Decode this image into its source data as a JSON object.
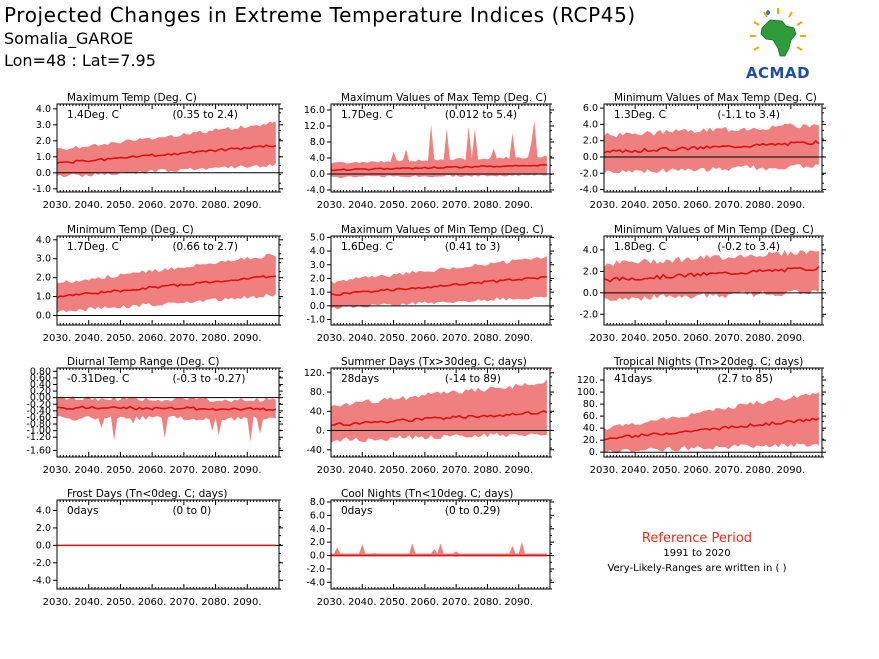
{
  "header": {
    "title": "Projected Changes in Extreme Temperature Indices (RCP45)",
    "station": "Somalia_GAROE",
    "coords": "Lon=48 : Lat=7.95"
  },
  "logo": {
    "text": "ACMAD"
  },
  "reference": {
    "title": "Reference Period",
    "years": "1991 to 2020",
    "note": "Very-Likely-Ranges are written in ( )"
  },
  "colors": {
    "band": "#f08080",
    "line": "#e01010",
    "zero": "#000000"
  },
  "chart_data": [
    {
      "type": "area",
      "title": "Maximum Temp (Deg. C)",
      "change": "1.4Deg. C",
      "range": "(0.35 to 2.4)",
      "yticks": [
        "-1.0",
        "0.0",
        "1.0",
        "2.0",
        "3.0",
        "4.0"
      ],
      "ylim": [
        -1.2,
        4.3
      ],
      "median_start": 0.6,
      "median_end": 1.7,
      "lower_start": -0.1,
      "lower_end": 0.6,
      "upper_start": 1.3,
      "upper_end": 3.0,
      "noise": 0.25,
      "spike": 0,
      "xticks": [
        "2030.",
        "2040.",
        "2050.",
        "2060.",
        "2070.",
        "2080.",
        "2090."
      ],
      "xlim": [
        2030,
        2100
      ],
      "x_start": 2030,
      "x_end": 2099,
      "seed": 1
    },
    {
      "type": "area",
      "title": "Maximum Values of Max Temp (Deg. C)",
      "change": "1.7Deg. C",
      "range": "(0.012 to 5.4)",
      "yticks": [
        "-4.0",
        "0.0",
        "4.0",
        "8.0",
        "12.0",
        "16.0"
      ],
      "ylim": [
        -4.5,
        17.5
      ],
      "median_start": 1.0,
      "median_end": 2.2,
      "lower_start": -0.5,
      "lower_end": 0.0,
      "upper_start": 2.5,
      "upper_end": 4.0,
      "noise": 0.6,
      "spike": 9,
      "xticks": [
        "2030.",
        "2040.",
        "2050.",
        "2060.",
        "2070.",
        "2080.",
        "2090."
      ],
      "xlim": [
        2030,
        2100
      ],
      "x_start": 2030,
      "x_end": 2099,
      "seed": 2
    },
    {
      "type": "area",
      "title": "Minimum Values of Max Temp (Deg. C)",
      "change": "1.3Deg. C",
      "range": "(-1.1 to 3.4)",
      "yticks": [
        "-4.0",
        "-2.0",
        "0.0",
        "2.0",
        "4.0",
        "6.0"
      ],
      "ylim": [
        -4.3,
        6.5
      ],
      "median_start": 0.6,
      "median_end": 1.8,
      "lower_start": -1.5,
      "lower_end": -0.8,
      "upper_start": 2.3,
      "upper_end": 3.6,
      "noise": 0.7,
      "spike": 0,
      "xticks": [
        "2030.",
        "2040.",
        "2050.",
        "2060.",
        "2070.",
        "2080.",
        "2090."
      ],
      "xlim": [
        2030,
        2100
      ],
      "x_start": 2030,
      "x_end": 2099,
      "seed": 3
    },
    {
      "type": "area",
      "title": "Minimum Temp (Deg. C)",
      "change": "1.7Deg. C",
      "range": "(0.66 to 2.7)",
      "yticks": [
        "0.0",
        "1.0",
        "2.0",
        "3.0",
        "4.0"
      ],
      "ylim": [
        -0.5,
        4.2
      ],
      "median_start": 1.0,
      "median_end": 2.1,
      "lower_start": 0.3,
      "lower_end": 1.2,
      "upper_start": 1.6,
      "upper_end": 3.1,
      "noise": 0.22,
      "spike": 0,
      "xticks": [
        "2030.",
        "2040.",
        "2050.",
        "2060.",
        "2070.",
        "2080.",
        "2090."
      ],
      "xlim": [
        2030,
        2100
      ],
      "x_start": 2030,
      "x_end": 2099,
      "seed": 4
    },
    {
      "type": "area",
      "title": "Maximum Values of Min Temp (Deg. C)",
      "change": "1.6Deg. C",
      "range": "(0.41 to 3)",
      "yticks": [
        "-1.0",
        "0.0",
        "1.0",
        "2.0",
        "3.0",
        "4.0",
        "5.0"
      ],
      "ylim": [
        -1.4,
        5.1
      ],
      "median_start": 0.8,
      "median_end": 2.1,
      "lower_start": 0.0,
      "lower_end": 0.8,
      "upper_start": 1.6,
      "upper_end": 3.4,
      "noise": 0.3,
      "spike": 0,
      "xticks": [
        "2030.",
        "2040.",
        "2050.",
        "2060.",
        "2070.",
        "2080.",
        "2090."
      ],
      "xlim": [
        2030,
        2100
      ],
      "x_start": 2030,
      "x_end": 2099,
      "seed": 5
    },
    {
      "type": "area",
      "title": "Minimum Values of Min Temp (Deg. C)",
      "change": "1.8Deg. C",
      "range": "(-0.2 to 3.4)",
      "yticks": [
        "-2.0",
        "0.0",
        "2.0",
        "4.0"
      ],
      "ylim": [
        -3.0,
        5.3
      ],
      "median_start": 1.2,
      "median_end": 2.3,
      "lower_start": -0.3,
      "lower_end": 0.4,
      "upper_start": 2.4,
      "upper_end": 3.6,
      "noise": 0.6,
      "spike": 0,
      "xticks": [
        "2030.",
        "2040.",
        "2050.",
        "2060.",
        "2070.",
        "2080.",
        "2090."
      ],
      "xlim": [
        2030,
        2100
      ],
      "x_start": 2030,
      "x_end": 2099,
      "seed": 6
    },
    {
      "type": "area",
      "title": "Diurnal Temp Range (Deg. C)",
      "change": "-0.31Deg. C",
      "range": "(-0.3 to -0.27)",
      "yticks": [
        "-1.60",
        "-1.20",
        "-1.00",
        "-0.80",
        "-0.60",
        "-0.40",
        "-0.20",
        "0.00",
        "0.20",
        "0.40",
        "0.60",
        "0.80"
      ],
      "ytick_values": [
        -1.6,
        -1.2,
        -1.0,
        -0.8,
        -0.6,
        -0.4,
        -0.2,
        0.0,
        0.2,
        0.4,
        0.6,
        0.8
      ],
      "ylim": [
        -1.8,
        0.9
      ],
      "median_start": -0.3,
      "median_end": -0.35,
      "lower_start": -0.55,
      "lower_end": -0.55,
      "upper_start": -0.1,
      "upper_end": -0.15,
      "noise": 0.15,
      "spike": -0.8,
      "xticks": [
        "2030.",
        "2040.",
        "2050.",
        "2060.",
        "2070.",
        "2080.",
        "2090."
      ],
      "xlim": [
        2030,
        2100
      ],
      "x_start": 2030,
      "x_end": 2099,
      "seed": 7
    },
    {
      "type": "area",
      "title": "Summer Days (Tx>30deg. C; days)",
      "change": "28days",
      "range": "(-14 to 89)",
      "yticks": [
        "-40.",
        "0.",
        "40.",
        "80.",
        "120."
      ],
      "ylim": [
        -55,
        130
      ],
      "median_start": 12,
      "median_end": 38,
      "lower_start": -15,
      "lower_end": 0,
      "upper_start": 45,
      "upper_end": 95,
      "noise": 12,
      "spike": 0,
      "xticks": [
        "2030.",
        "2040.",
        "2050.",
        "2060.",
        "2070.",
        "2080.",
        "2090."
      ],
      "xlim": [
        2030,
        2100
      ],
      "x_start": 2030,
      "x_end": 2099,
      "seed": 8
    },
    {
      "type": "area",
      "title": "Tropical Nights (Tn>20deg. C; days)",
      "change": "41days",
      "range": "(2.7 to 85)",
      "yticks": [
        "0.",
        "20.",
        "40.",
        "60.",
        "80.",
        "100.",
        "120."
      ],
      "ylim": [
        -8,
        140
      ],
      "median_start": 22,
      "median_end": 55,
      "lower_start": 5,
      "lower_end": 18,
      "upper_start": 35,
      "upper_end": 95,
      "noise": 8,
      "spike": 0,
      "xticks": [
        "2030.",
        "2040.",
        "2050.",
        "2060.",
        "2070.",
        "2080.",
        "2090."
      ],
      "xlim": [
        2030,
        2100
      ],
      "x_start": 2030,
      "x_end": 2099,
      "seed": 9
    },
    {
      "type": "area",
      "title": "Frost Days (Tn<0deg. C; days)",
      "change": "0days",
      "range": "(0 to 0)",
      "yticks": [
        "-4.0",
        "-2.0",
        "0.0",
        "2.0",
        "4.0"
      ],
      "ylim": [
        -5.0,
        5.2
      ],
      "median_start": 0,
      "median_end": 0,
      "lower_start": 0,
      "lower_end": 0,
      "upper_start": 0,
      "upper_end": 0,
      "noise": 0,
      "spike": 0,
      "xticks": [
        "2030.",
        "2040.",
        "2050.",
        "2060.",
        "2070.",
        "2080.",
        "2090."
      ],
      "xlim": [
        2030,
        2100
      ],
      "x_start": 2030,
      "x_end": 2099,
      "seed": 10
    },
    {
      "type": "area",
      "title": "Cool Nights (Tn<10deg. C; days)",
      "change": "0days",
      "range": "(0 to 0.29)",
      "yticks": [
        "-4.0",
        "-2.0",
        "0.0",
        "2.0",
        "4.0",
        "6.0",
        "8.0"
      ],
      "ylim": [
        -5.0,
        8.3
      ],
      "median_start": 0,
      "median_end": 0,
      "lower_start": 0,
      "lower_end": 0,
      "upper_start": 0.3,
      "upper_end": 0.3,
      "noise": 0,
      "spike": 1.8,
      "xticks": [
        "2030.",
        "2040.",
        "2050.",
        "2060.",
        "2070.",
        "2080.",
        "2090."
      ],
      "xlim": [
        2030,
        2100
      ],
      "x_start": 2030,
      "x_end": 2099,
      "seed": 11
    }
  ]
}
